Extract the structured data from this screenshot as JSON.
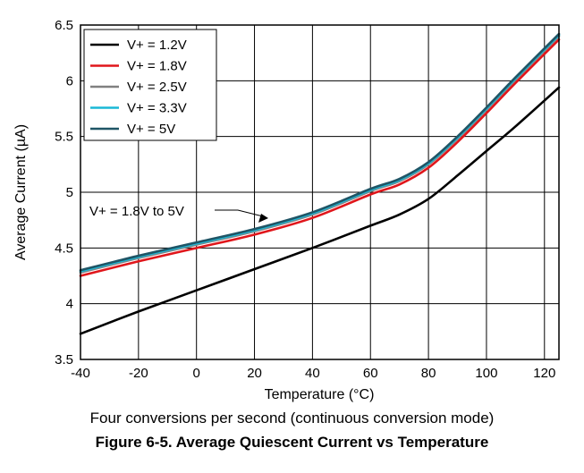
{
  "chart_data": {
    "type": "line",
    "title": "",
    "xlabel": "Temperature (°C)",
    "ylabel": "Average Current (µA)",
    "xlim": [
      -40,
      125
    ],
    "ylim": [
      3.5,
      6.5
    ],
    "xticks": [
      -40,
      -20,
      0,
      20,
      40,
      60,
      80,
      100,
      120
    ],
    "yticks": [
      3.5,
      4,
      4.5,
      5,
      5.5,
      6,
      6.5
    ],
    "ytick_labels": [
      "3.5",
      "4",
      "4.5",
      "5",
      "5.5",
      "6",
      "6.5"
    ],
    "grid": true,
    "legend_position": "top-left",
    "x": [
      -40,
      -20,
      0,
      20,
      40,
      60,
      70,
      80,
      90,
      100,
      110,
      125
    ],
    "series": [
      {
        "name": "V+ = 1.2V",
        "color": "#000000",
        "values": [
          3.73,
          3.93,
          4.12,
          4.31,
          4.5,
          4.7,
          4.8,
          4.94,
          5.15,
          5.37,
          5.59,
          5.94
        ]
      },
      {
        "name": "V+ = 1.8V",
        "color": "#e0161b",
        "values": [
          4.25,
          4.38,
          4.5,
          4.62,
          4.77,
          4.98,
          5.07,
          5.22,
          5.45,
          5.71,
          5.98,
          6.37
        ]
      },
      {
        "name": "V+ = 2.5V",
        "color": "#808080",
        "values": [
          4.28,
          4.41,
          4.53,
          4.65,
          4.8,
          5.01,
          5.1,
          5.25,
          5.48,
          5.74,
          6.01,
          6.4
        ]
      },
      {
        "name": "V+ = 3.3V",
        "color": "#1ab8d6",
        "values": [
          4.29,
          4.42,
          4.54,
          4.66,
          4.81,
          5.02,
          5.11,
          5.26,
          5.49,
          5.75,
          6.02,
          6.41
        ]
      },
      {
        "name": "V+ = 5V",
        "color": "#1f5566",
        "values": [
          4.3,
          4.43,
          4.55,
          4.67,
          4.82,
          5.03,
          5.12,
          5.27,
          5.5,
          5.76,
          6.03,
          6.42
        ]
      }
    ],
    "annotation": {
      "text": "V+ = 1.8V to 5V",
      "x": 22,
      "y": 4.68
    }
  },
  "caption": {
    "note": "Four conversions per second (continuous conversion mode)",
    "title": "Figure 6-5. Average Quiescent Current vs Temperature"
  }
}
